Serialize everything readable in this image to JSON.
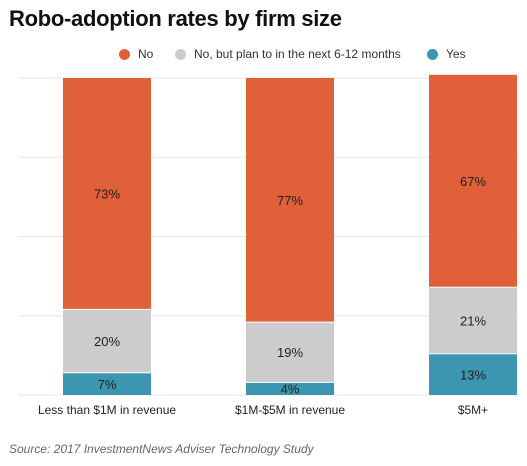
{
  "chart_data": {
    "type": "bar",
    "stacked": true,
    "title": "Robo-adoption rates by firm size",
    "categories": [
      "Less than $1M in revenue",
      "$1M-$5M in revenue",
      "$5M+"
    ],
    "series": [
      {
        "name": "Yes",
        "values": [
          7,
          4,
          13
        ],
        "labels": [
          "7%",
          "4%",
          "13%"
        ],
        "color": "#3d96b0"
      },
      {
        "name": "No, but plan to in the next 6-12 months",
        "values": [
          20,
          19,
          21
        ],
        "labels": [
          "20%",
          "19%",
          "21%"
        ],
        "color": "#cccccc"
      },
      {
        "name": "No",
        "values": [
          73,
          77,
          67
        ],
        "labels": [
          "73%",
          "77%",
          "67%"
        ],
        "color": "#e0603a"
      }
    ],
    "legend_order": [
      "No",
      "No, but plan to in the next 6-12 months",
      "Yes"
    ],
    "legend_position": "top-right",
    "ylim": [
      0,
      100
    ],
    "grid": true,
    "source": "Source: 2017 InvestmentNews Adviser Technology Study"
  }
}
